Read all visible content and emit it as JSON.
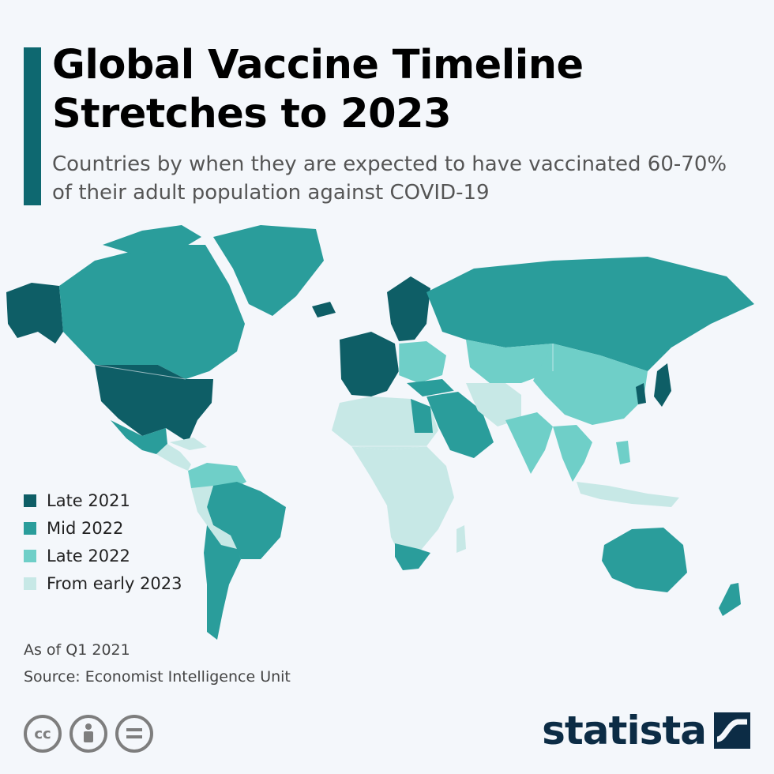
{
  "header": {
    "title": "Global Vaccine Timeline Stretches to 2023",
    "subtitle": "Countries by when they are expected to have vaccinated 60-70% of their adult population against COVID-19"
  },
  "colors": {
    "accent": "#0e6870",
    "late_2021": "#0e5e66",
    "mid_2022": "#2a9d9b",
    "late_2022": "#6fcfc8",
    "early_2023": "#c7e8e6"
  },
  "legend": {
    "items": [
      {
        "label": "Late 2021",
        "color": "#0e5e66"
      },
      {
        "label": "Mid 2022",
        "color": "#2a9d9b"
      },
      {
        "label": "Late 2022",
        "color": "#6fcfc8"
      },
      {
        "label": "From early 2023",
        "color": "#c7e8e6"
      }
    ]
  },
  "footer": {
    "as_of": "As of Q1 2021",
    "source": "Source: Economist Intelligence Unit",
    "brand": "statista",
    "license_icons": [
      "cc-icon",
      "attribution-icon",
      "no-derivatives-icon"
    ]
  }
}
